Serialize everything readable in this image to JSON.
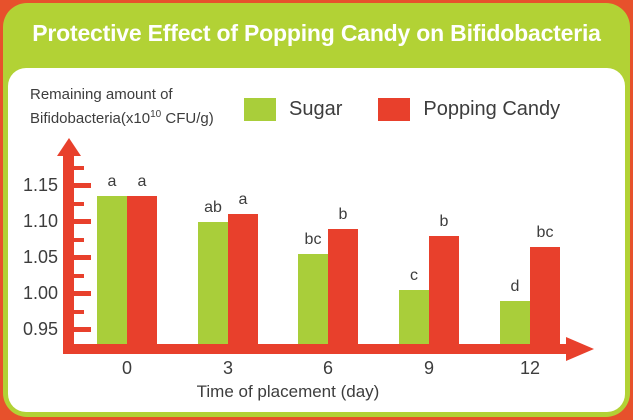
{
  "title": "Protective Effect of Popping Candy on Bifidobacteria",
  "y_axis_label": {
    "line1": "Remaining amount of",
    "line2_prefix": "Bifidobacteria(x10",
    "superscript": "10",
    "line2_suffix": " CFU/g)"
  },
  "legend": {
    "items": [
      {
        "label": "Sugar",
        "color": "#a9ce3a"
      },
      {
        "label": "Popping Candy",
        "color": "#e8402c"
      }
    ]
  },
  "colors": {
    "background_orange": "#e7512c",
    "card_green": "#b2d235",
    "panel_white": "#ffffff",
    "axis_red": "#e8402c",
    "text_dark": "#3d3d3d",
    "title_white": "#ffffff"
  },
  "chart_data": {
    "type": "bar",
    "title": "Protective Effect of Popping Candy on Bifidobacteria",
    "xlabel": "Time of placement (day)",
    "ylabel": "Remaining amount of Bifidobacteria(x10^10 CFU/g)",
    "categories": [
      "0",
      "3",
      "6",
      "9",
      "12"
    ],
    "series": [
      {
        "name": "Sugar",
        "color": "#a9ce3a",
        "values": [
          1.135,
          1.1,
          1.055,
          1.005,
          0.99
        ],
        "letters": [
          "a",
          "ab",
          "bc",
          "c",
          "d"
        ]
      },
      {
        "name": "Popping Candy",
        "color": "#e8402c",
        "values": [
          1.135,
          1.11,
          1.09,
          1.08,
          1.065
        ],
        "letters": [
          "a",
          "a",
          "b",
          "b",
          "bc"
        ]
      }
    ],
    "ylim": [
      0.93,
      1.185
    ],
    "y_ticks_major": [
      0.95,
      1.0,
      1.05,
      1.1,
      1.15
    ],
    "y_ticks_minor": [
      0.975,
      1.025,
      1.075,
      1.125,
      1.175
    ],
    "grid": false,
    "legend_position": "top"
  }
}
